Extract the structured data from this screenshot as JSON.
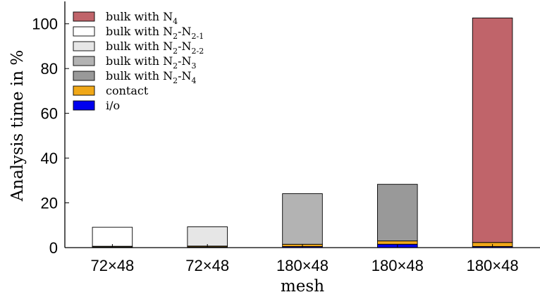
{
  "chart_data": {
    "type": "bar",
    "stacked": true,
    "title": "",
    "xlabel": "mesh",
    "ylabel": "Analysis time in %",
    "ylim": [
      0,
      110
    ],
    "yticks": [
      "0",
      "20",
      "40",
      "60",
      "80",
      "100"
    ],
    "categories": [
      "72×48",
      "72×48",
      "180×48",
      "180×48",
      "180×48"
    ],
    "legend_position": "top-left",
    "grid": false,
    "series": [
      {
        "key": "io",
        "name": "i/o",
        "color": "#0000ee",
        "values": [
          0.3,
          0.3,
          0.5,
          1.5,
          0.5
        ]
      },
      {
        "key": "contact",
        "name": "contact",
        "color": "#f0a818",
        "values": [
          0.3,
          0.4,
          1.0,
          1.5,
          1.8
        ]
      },
      {
        "key": "n2n4",
        "name": "bulk with N2-N4",
        "color": "#999999",
        "values": [
          0,
          0,
          0,
          25.3,
          0
        ]
      },
      {
        "key": "n2n3",
        "name": "bulk with N2-N3",
        "color": "#b3b3b3",
        "values": [
          0,
          0,
          22.6,
          0,
          0
        ]
      },
      {
        "key": "n2n22",
        "name": "bulk with N2-N2-2",
        "color": "#e6e6e6",
        "values": [
          0,
          8.6,
          0,
          0,
          0
        ]
      },
      {
        "key": "n2n21",
        "name": "bulk with N2-N2-1",
        "color": "#ffffff",
        "values": [
          8.5,
          0,
          0,
          0,
          0
        ]
      },
      {
        "key": "n4",
        "name": "bulk with N4",
        "color": "#c0646a",
        "values": [
          0,
          0,
          0,
          0,
          100.3
        ]
      }
    ],
    "legend": [
      {
        "key": "n4",
        "label": "bulk with N",
        "sub1": "4",
        "mid": "",
        "sub2": ""
      },
      {
        "key": "n2n21",
        "label": "bulk with N",
        "sub1": "2",
        "mid": "-N",
        "sub2": "2-1"
      },
      {
        "key": "n2n22",
        "label": "bulk with N",
        "sub1": "2",
        "mid": "-N",
        "sub2": "2-2"
      },
      {
        "key": "n2n3",
        "label": "bulk with N",
        "sub1": "2",
        "mid": "-N",
        "sub2": "3"
      },
      {
        "key": "n2n4",
        "label": "bulk with N",
        "sub1": "2",
        "mid": "-N",
        "sub2": "4"
      },
      {
        "key": "contact",
        "label": "contact",
        "sub1": "",
        "mid": "",
        "sub2": ""
      },
      {
        "key": "io",
        "label": "i/o",
        "sub1": "",
        "mid": "",
        "sub2": ""
      }
    ]
  }
}
